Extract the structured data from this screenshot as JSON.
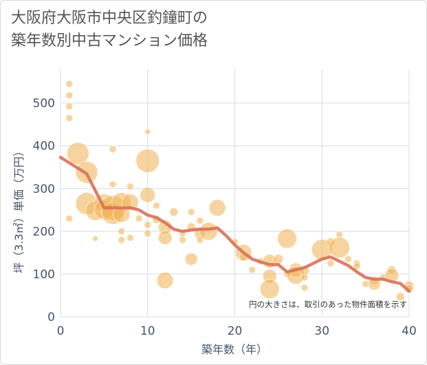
{
  "title_lines": [
    "大阪府大阪市中央区釣鐘町の",
    "築年数別中古マンション価格"
  ],
  "chart_data": {
    "type": "scatter",
    "title": "大阪府大阪市中央区釣鐘町の築年数別中古マンション価格",
    "xlabel": "築年数（年）",
    "ylabel": "坪（3.3㎡）単価（万円）",
    "xlim": [
      0,
      40
    ],
    "ylim": [
      0,
      580
    ],
    "xticks": [
      0,
      10,
      20,
      30,
      40
    ],
    "yticks": [
      0,
      100,
      200,
      300,
      400,
      500
    ],
    "grid": true,
    "annotation": "円の大きさは、取引のあった物件面積を示す",
    "colors": {
      "bubble": "#f0b050",
      "line": "#d9705a",
      "grid": "#d5dce6",
      "text": "#44546a"
    },
    "bubbles": [
      {
        "x": 1,
        "y": 545,
        "s": 5
      },
      {
        "x": 1,
        "y": 518,
        "s": 5
      },
      {
        "x": 1,
        "y": 492,
        "s": 5
      },
      {
        "x": 1,
        "y": 465,
        "s": 5
      },
      {
        "x": 1,
        "y": 230,
        "s": 5
      },
      {
        "x": 2,
        "y": 382,
        "s": 16
      },
      {
        "x": 3,
        "y": 338,
        "s": 16
      },
      {
        "x": 3,
        "y": 265,
        "s": 16
      },
      {
        "x": 4,
        "y": 248,
        "s": 14
      },
      {
        "x": 5,
        "y": 265,
        "s": 14
      },
      {
        "x": 5,
        "y": 250,
        "s": 14
      },
      {
        "x": 6,
        "y": 255,
        "s": 18
      },
      {
        "x": 6,
        "y": 242,
        "s": 16
      },
      {
        "x": 6,
        "y": 392,
        "s": 5
      },
      {
        "x": 6,
        "y": 310,
        "s": 5
      },
      {
        "x": 7,
        "y": 268,
        "s": 14
      },
      {
        "x": 7,
        "y": 240,
        "s": 12
      },
      {
        "x": 7,
        "y": 200,
        "s": 5
      },
      {
        "x": 7,
        "y": 180,
        "s": 5
      },
      {
        "x": 8,
        "y": 305,
        "s": 5
      },
      {
        "x": 8,
        "y": 268,
        "s": 12
      },
      {
        "x": 8,
        "y": 185,
        "s": 5
      },
      {
        "x": 4,
        "y": 183,
        "s": 4
      },
      {
        "x": 9,
        "y": 230,
        "s": 5
      },
      {
        "x": 10,
        "y": 433,
        "s": 4
      },
      {
        "x": 10,
        "y": 365,
        "s": 17
      },
      {
        "x": 10,
        "y": 285,
        "s": 11
      },
      {
        "x": 10,
        "y": 215,
        "s": 5
      },
      {
        "x": 10,
        "y": 195,
        "s": 5
      },
      {
        "x": 11,
        "y": 260,
        "s": 5
      },
      {
        "x": 11,
        "y": 228,
        "s": 6
      },
      {
        "x": 12,
        "y": 210,
        "s": 10
      },
      {
        "x": 12,
        "y": 185,
        "s": 10
      },
      {
        "x": 12,
        "y": 85,
        "s": 12
      },
      {
        "x": 13,
        "y": 245,
        "s": 6
      },
      {
        "x": 14,
        "y": 195,
        "s": 5
      },
      {
        "x": 14,
        "y": 180,
        "s": 5
      },
      {
        "x": 15,
        "y": 245,
        "s": 5
      },
      {
        "x": 15,
        "y": 210,
        "s": 6
      },
      {
        "x": 15,
        "y": 135,
        "s": 9
      },
      {
        "x": 16,
        "y": 225,
        "s": 5
      },
      {
        "x": 16,
        "y": 195,
        "s": 8
      },
      {
        "x": 16,
        "y": 180,
        "s": 5
      },
      {
        "x": 17,
        "y": 200,
        "s": 13
      },
      {
        "x": 18,
        "y": 255,
        "s": 12
      },
      {
        "x": 20,
        "y": 175,
        "s": 5
      },
      {
        "x": 21,
        "y": 150,
        "s": 12
      },
      {
        "x": 21,
        "y": 140,
        "s": 6
      },
      {
        "x": 22,
        "y": 110,
        "s": 5
      },
      {
        "x": 23,
        "y": 130,
        "s": 5
      },
      {
        "x": 24,
        "y": 130,
        "s": 10
      },
      {
        "x": 24,
        "y": 95,
        "s": 10
      },
      {
        "x": 24,
        "y": 65,
        "s": 14
      },
      {
        "x": 25,
        "y": 135,
        "s": 7
      },
      {
        "x": 26,
        "y": 183,
        "s": 14
      },
      {
        "x": 26,
        "y": 100,
        "s": 5
      },
      {
        "x": 27,
        "y": 110,
        "s": 10
      },
      {
        "x": 27,
        "y": 97,
        "s": 13
      },
      {
        "x": 28,
        "y": 108,
        "s": 7
      },
      {
        "x": 28,
        "y": 92,
        "s": 5
      },
      {
        "x": 28,
        "y": 68,
        "s": 5
      },
      {
        "x": 30,
        "y": 157,
        "s": 15
      },
      {
        "x": 31,
        "y": 175,
        "s": 6
      },
      {
        "x": 31,
        "y": 125,
        "s": 5
      },
      {
        "x": 32,
        "y": 192,
        "s": 5
      },
      {
        "x": 32,
        "y": 162,
        "s": 15
      },
      {
        "x": 33,
        "y": 135,
        "s": 5
      },
      {
        "x": 34,
        "y": 125,
        "s": 5
      },
      {
        "x": 34,
        "y": 118,
        "s": 5
      },
      {
        "x": 35,
        "y": 77,
        "s": 5
      },
      {
        "x": 36,
        "y": 85,
        "s": 6
      },
      {
        "x": 36,
        "y": 77,
        "s": 9
      },
      {
        "x": 37,
        "y": 92,
        "s": 5
      },
      {
        "x": 38,
        "y": 110,
        "s": 6
      },
      {
        "x": 38,
        "y": 97,
        "s": 10
      },
      {
        "x": 39,
        "y": 47,
        "s": 6
      },
      {
        "x": 40,
        "y": 72,
        "s": 7
      },
      {
        "x": 40,
        "y": 65,
        "s": 6
      }
    ],
    "trend": {
      "x": [
        0,
        3,
        5,
        7,
        8,
        9,
        10,
        11,
        12,
        13,
        14,
        15,
        16,
        17,
        18,
        19,
        20,
        21,
        22,
        23,
        24,
        25,
        26,
        27,
        28,
        29,
        30,
        31,
        32,
        33,
        34,
        35,
        36,
        37,
        38,
        39,
        40
      ],
      "y": [
        373,
        335,
        255,
        255,
        255,
        250,
        238,
        232,
        220,
        205,
        200,
        203,
        205,
        205,
        208,
        190,
        168,
        150,
        135,
        128,
        122,
        122,
        105,
        110,
        115,
        125,
        135,
        140,
        130,
        120,
        105,
        92,
        88,
        88,
        82,
        78,
        60
      ]
    }
  }
}
